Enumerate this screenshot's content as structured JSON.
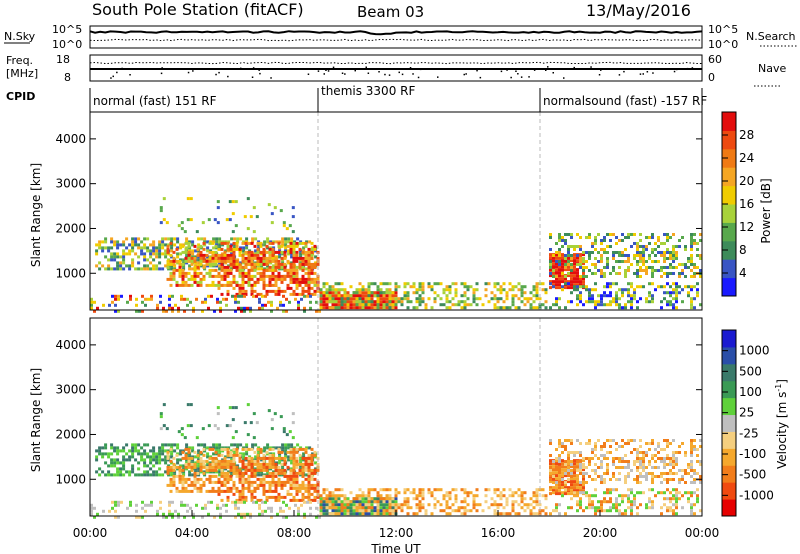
{
  "header": {
    "station": "South Pole Station (fitACF)",
    "beam": "Beam 03",
    "date": "13/May/2016"
  },
  "strip_panels": {
    "nsky": {
      "label": "N.Sky",
      "ticks": [
        "10^5",
        "10^0"
      ],
      "right_label": "N.Search",
      "right_ticks": [
        "10^5",
        "10^0"
      ]
    },
    "freq": {
      "label_line1": "Freq.",
      "label_line2": "[MHz]",
      "ticks": [
        "18",
        "8"
      ],
      "right_label": "Nave",
      "right_ticks": [
        "60",
        "0"
      ]
    },
    "cpid": {
      "label": "CPID",
      "segments": [
        {
          "label": "normal (fast) 151 RF",
          "start_hour": 0
        },
        {
          "label": "themis 3300 RF",
          "start_hour": 9
        },
        {
          "label": "normalsound (fast) -157 RF",
          "start_hour": 18
        }
      ]
    }
  },
  "chart_data": [
    {
      "type": "heatmap",
      "name": "power",
      "ylabel": "Slant Range [km]",
      "yticks": [
        1000,
        2000,
        3000,
        4000
      ],
      "ylim": [
        180,
        4600
      ],
      "xlim": [
        0,
        24
      ],
      "colorbar": {
        "label": "Power [dB]",
        "ticks": [
          "4",
          "8",
          "12",
          "16",
          "20",
          "24",
          "28"
        ],
        "colors": [
          "#1a1aff",
          "#3955c4",
          "#3d8b5a",
          "#58a84c",
          "#a8d23a",
          "#f0cc00",
          "#f5a623",
          "#f07a14",
          "#ee4a10",
          "#e30d0d"
        ]
      }
    },
    {
      "type": "heatmap",
      "name": "velocity",
      "ylabel": "Slant Range [km]",
      "yticks": [
        1000,
        2000,
        3000,
        4000
      ],
      "ylim": [
        180,
        4600
      ],
      "xlim": [
        0,
        24
      ],
      "xticks": [
        "00:00",
        "04:00",
        "08:00",
        "12:00",
        "16:00",
        "20:00",
        "00:00"
      ],
      "xlabel": "Time UT",
      "colorbar": {
        "label": "Velocity [m s",
        "label_sup": "-1",
        "label_end": "]",
        "ticks": [
          "-1000",
          "-500",
          "-100",
          "-25",
          "25",
          "100",
          "500",
          "1000"
        ],
        "colors": [
          "#e60000",
          "#f04a10",
          "#f27d1a",
          "#f5a82d",
          "#f5cf7f",
          "#bfbfbf",
          "#5fd13a",
          "#3a9a55",
          "#3a7a6a",
          "#2a4ea8",
          "#1a1ad0"
        ]
      }
    }
  ]
}
